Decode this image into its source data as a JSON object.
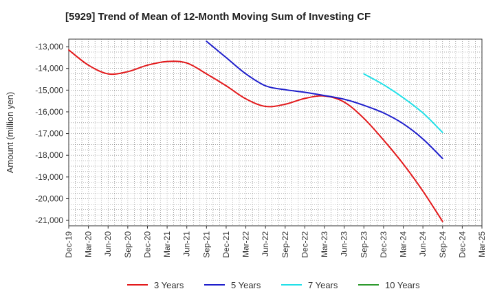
{
  "chart_data": {
    "type": "line",
    "title": "[5929]  Trend of Mean of 12-Month Moving Sum of Investing CF",
    "xlabel": "",
    "ylabel": "Amount (million yen)",
    "ylim": [
      -21250,
      -12650
    ],
    "yticks": [
      -13000,
      -14000,
      -15000,
      -16000,
      -17000,
      -18000,
      -19000,
      -20000,
      -21000
    ],
    "ytick_labels": [
      "-13,000",
      "-14,000",
      "-15,000",
      "-16,000",
      "-17,000",
      "-18,000",
      "-19,000",
      "-20,000",
      "-21,000"
    ],
    "categories": [
      "Dec-19",
      "Mar-20",
      "Jun-20",
      "Sep-20",
      "Dec-20",
      "Mar-21",
      "Jun-21",
      "Sep-21",
      "Dec-21",
      "Mar-22",
      "Jun-22",
      "Sep-22",
      "Dec-22",
      "Mar-23",
      "Jun-23",
      "Sep-23",
      "Dec-23",
      "Mar-24",
      "Jun-24",
      "Sep-24",
      "Dec-24",
      "Mar-25"
    ],
    "grid": true,
    "legend_position": "bottom",
    "series": [
      {
        "name": "3 Years",
        "color": "#e31a1c",
        "x": [
          "Dec-19",
          "Mar-20",
          "Jun-20",
          "Sep-20",
          "Dec-20",
          "Mar-21",
          "Jun-21",
          "Sep-21",
          "Dec-21",
          "Mar-22",
          "Jun-22",
          "Sep-22",
          "Dec-22",
          "Mar-23",
          "Jun-23",
          "Sep-23",
          "Dec-23",
          "Mar-24",
          "Jun-24",
          "Sep-24"
        ],
        "values": [
          -13150,
          -13850,
          -14250,
          -14150,
          -13850,
          -13680,
          -13750,
          -14250,
          -14800,
          -15400,
          -15750,
          -15650,
          -15380,
          -15270,
          -15550,
          -16300,
          -17300,
          -18400,
          -19650,
          -21050
        ]
      },
      {
        "name": "5 Years",
        "color": "#1f1fcc",
        "x": [
          "Sep-21",
          "Dec-21",
          "Mar-22",
          "Jun-22",
          "Sep-22",
          "Dec-22",
          "Mar-23",
          "Jun-23",
          "Sep-23",
          "Dec-23",
          "Mar-24",
          "Jun-24",
          "Sep-24"
        ],
        "values": [
          -12750,
          -13500,
          -14250,
          -14800,
          -14980,
          -15100,
          -15250,
          -15420,
          -15700,
          -16050,
          -16550,
          -17250,
          -18150
        ]
      },
      {
        "name": "7 Years",
        "color": "#22e0e8",
        "x": [
          "Sep-23",
          "Dec-23",
          "Mar-24",
          "Jun-24",
          "Sep-24"
        ],
        "values": [
          -14250,
          -14750,
          -15350,
          -16050,
          -16950
        ]
      },
      {
        "name": "10 Years",
        "color": "#2e9a2e",
        "x": [],
        "values": []
      }
    ]
  }
}
